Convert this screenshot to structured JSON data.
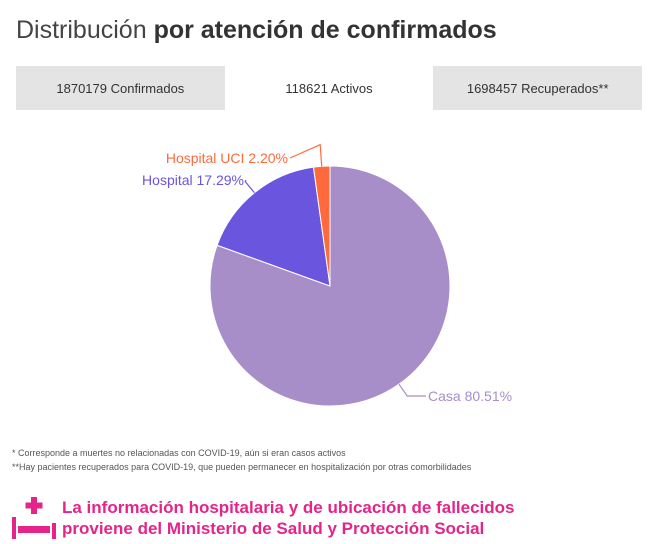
{
  "header": {
    "title_light": "Distribución",
    "title_bold": "por atención de confirmados"
  },
  "tabs": [
    {
      "label": "1870179 Confirmados",
      "active": false
    },
    {
      "label": "118621 Activos",
      "active": true
    },
    {
      "label": "1698457 Recuperados**",
      "active": false
    }
  ],
  "chart_data": {
    "type": "pie",
    "title": "",
    "slices": [
      {
        "label": "Casa",
        "value": 80.51,
        "display": "Casa 80.51%",
        "color": "#a78ec8"
      },
      {
        "label": "Hospital",
        "value": 17.29,
        "display": "Hospital 17.29%",
        "color": "#6a55df"
      },
      {
        "label": "Hospital UCI",
        "value": 2.2,
        "display": "Hospital UCI 2.20%",
        "color": "#ff6a3d"
      }
    ],
    "start": "12 o'clock",
    "direction": "clockwise",
    "legend": "none"
  },
  "footnotes": [
    "* Corresponde a muertes no relacionadas con COVID-19, aún si eran casos activos",
    "**Hay pacientes recuperados para COVID-19, que pueden permanecer en hospitalización por otras comorbilidades"
  ],
  "notice": {
    "icon": "hospital-bed-icon",
    "color": "#e5248a",
    "line1": "La información hospitalaria y de ubicación de fallecidos",
    "line2": "proviene del Ministerio de Salud y Protección Social"
  }
}
